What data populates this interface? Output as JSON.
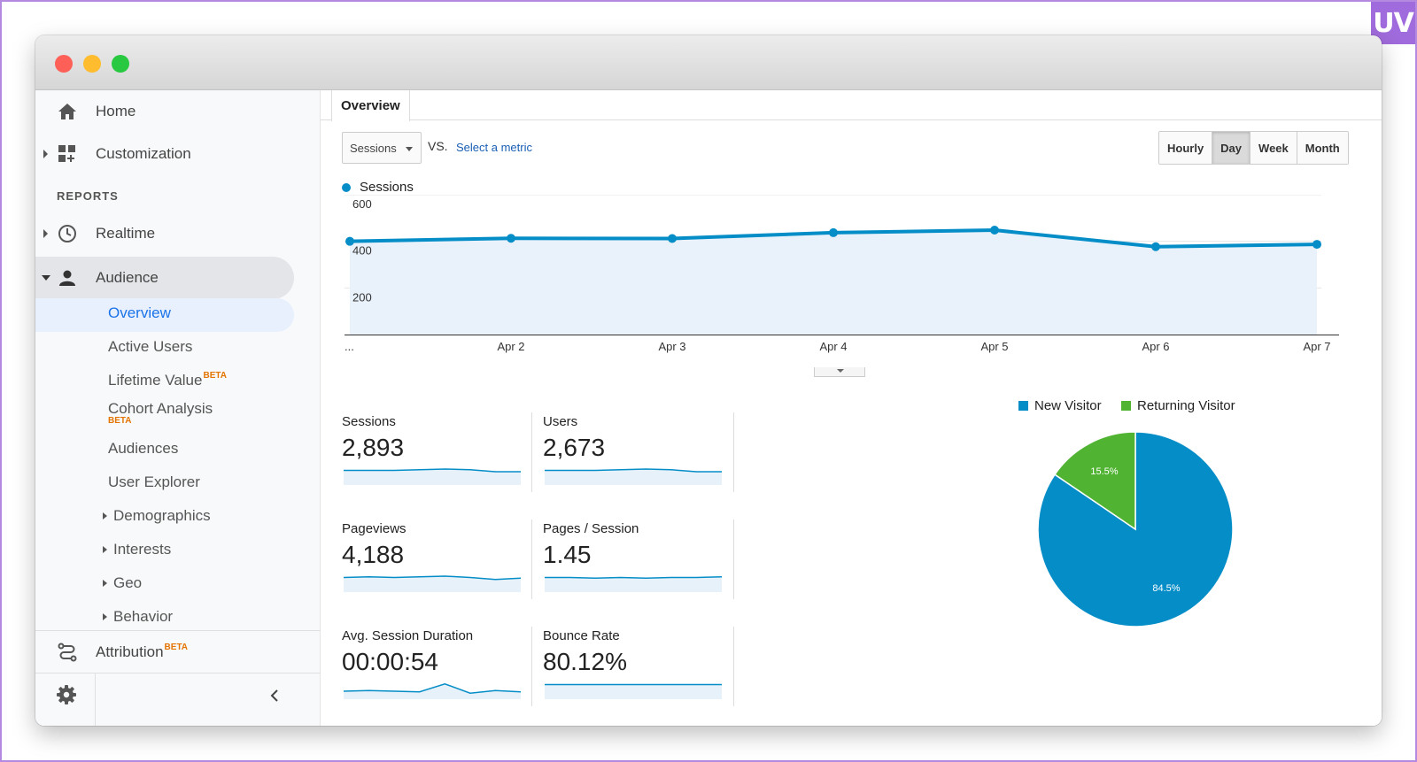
{
  "badge": "UV",
  "colors": {
    "primary": "#058dc7",
    "secondary": "#50b432",
    "sidebar_active": "#1a73e8",
    "beta": "#e37400"
  },
  "sidebar": {
    "home": {
      "label": "Home",
      "icon": "home-icon"
    },
    "customization": {
      "label": "Customization",
      "icon": "dashboard-grid-icon"
    },
    "reports_header": "REPORTS",
    "realtime": {
      "label": "Realtime",
      "icon": "clock-icon"
    },
    "audience": {
      "label": "Audience",
      "icon": "person-icon"
    },
    "audience_items": {
      "overview": "Overview",
      "active_users": "Active Users",
      "lifetime_value": "Lifetime Value",
      "cohort_analysis": "Cohort Analysis",
      "audiences": "Audiences",
      "user_explorer": "User Explorer",
      "demographics": "Demographics",
      "interests": "Interests",
      "geo": "Geo",
      "behavior": "Behavior"
    },
    "beta_label": "BETA",
    "attribution": {
      "label": "Attribution",
      "icon": "attribution-path-icon"
    },
    "settings_icon": "gear-icon",
    "collapse_icon": "chevron-left-icon"
  },
  "main": {
    "tab": "Overview",
    "metric_select": "Sessions",
    "vs_label": "VS.",
    "select_metric_link": "Select a metric",
    "periods": [
      "Hourly",
      "Day",
      "Week",
      "Month"
    ],
    "active_period": "Day",
    "series_legend": "Sessions"
  },
  "chart_data": [
    {
      "type": "area",
      "x": [
        "...",
        "Apr 2",
        "Apr 3",
        "Apr 4",
        "Apr 5",
        "Apr 6",
        "Apr 7"
      ],
      "series": [
        {
          "name": "Sessions",
          "values": [
            400,
            413,
            412,
            437,
            448,
            377,
            387
          ]
        }
      ],
      "yticks": [
        200,
        400,
        600
      ],
      "ylim": [
        0,
        600
      ],
      "grid": true
    },
    {
      "type": "pie",
      "legend": [
        "New Visitor",
        "Returning Visitor"
      ],
      "labels": [
        "New Visitor",
        "Returning Visitor"
      ],
      "values": [
        84.5,
        15.5
      ],
      "slice_labels": [
        "84.5%",
        "15.5%"
      ],
      "colors": [
        "#058dc7",
        "#50b432"
      ],
      "legend_position": "top"
    }
  ],
  "metrics": [
    {
      "label": "Sessions",
      "value": "2,893",
      "spark": [
        30,
        30,
        30,
        31,
        32,
        31,
        28,
        28
      ]
    },
    {
      "label": "Users",
      "value": "2,673",
      "spark": [
        30,
        30,
        30,
        31,
        32,
        31,
        28,
        28
      ]
    },
    {
      "label": "Pageviews",
      "value": "4,188",
      "spark": [
        30,
        31,
        30,
        31,
        32,
        30,
        27,
        29
      ]
    },
    {
      "label": "Pages / Session",
      "value": "1.45",
      "spark": [
        30,
        30,
        29,
        30,
        29,
        30,
        30,
        31
      ]
    },
    {
      "label": "Avg. Session Duration",
      "value": "00:00:54",
      "spark": [
        20,
        21,
        20,
        19,
        31,
        17,
        21,
        19
      ]
    },
    {
      "label": "Bounce Rate",
      "value": "80.12%",
      "spark": [
        30,
        30,
        30,
        30,
        30,
        30,
        30,
        30
      ]
    }
  ]
}
